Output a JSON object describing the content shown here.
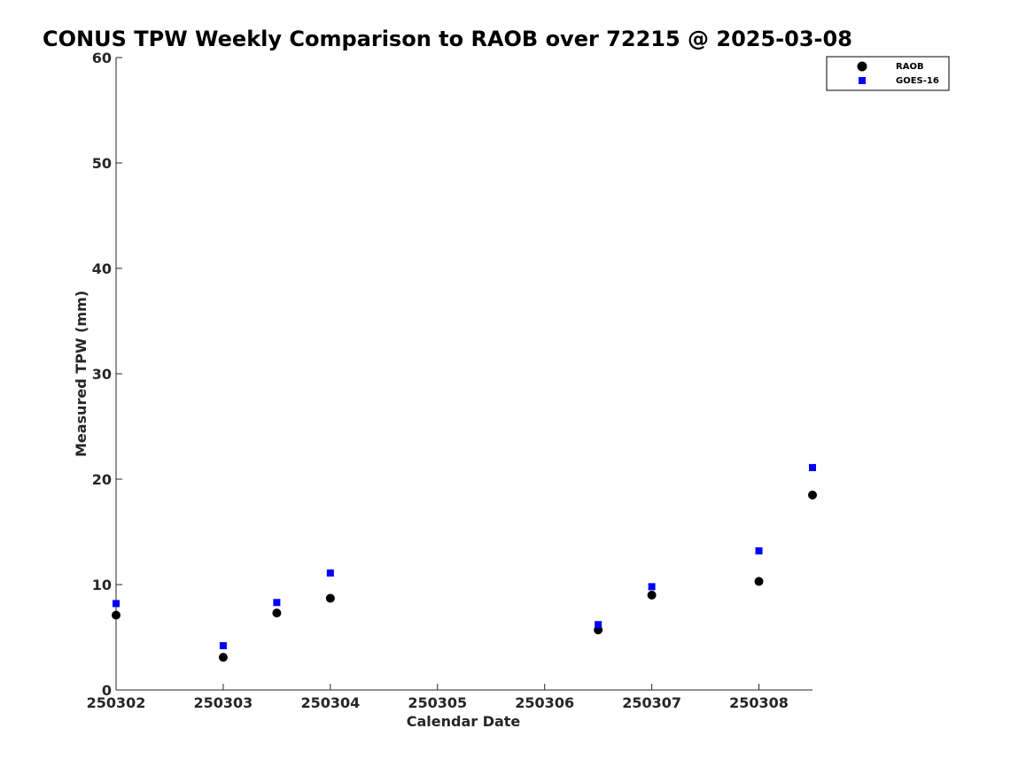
{
  "chart_data": {
    "type": "scatter",
    "title": "CONUS TPW Weekly Comparison to RAOB over 72215 @ 2025-03-08",
    "xlabel": "Calendar Date",
    "ylabel": "Measured TPW (mm)",
    "xlim": [
      0,
      6.5
    ],
    "ylim": [
      0,
      60
    ],
    "x_ticks": [
      {
        "value": 0,
        "label": "250302"
      },
      {
        "value": 1,
        "label": "250303"
      },
      {
        "value": 2,
        "label": "250304"
      },
      {
        "value": 3,
        "label": "250305"
      },
      {
        "value": 4,
        "label": "250306"
      },
      {
        "value": 5,
        "label": "250307"
      },
      {
        "value": 6,
        "label": "250308"
      }
    ],
    "y_ticks": [
      0,
      10,
      20,
      30,
      40,
      50,
      60
    ],
    "grid": false,
    "legend_position": "top-right",
    "series": [
      {
        "name": "RAOB",
        "marker": "circle",
        "color": "#000000",
        "x": [
          0,
          1,
          1.5,
          2,
          4.5,
          5,
          6,
          6.5
        ],
        "y": [
          7.1,
          3.1,
          7.3,
          8.7,
          5.7,
          9.0,
          10.3,
          18.5
        ]
      },
      {
        "name": "GOES-16",
        "marker": "square",
        "color": "#0000ff",
        "x": [
          0,
          1,
          1.5,
          2,
          4.5,
          5,
          6,
          6.5
        ],
        "y": [
          8.2,
          4.2,
          8.3,
          11.1,
          6.2,
          9.8,
          13.2,
          21.1
        ]
      }
    ]
  }
}
